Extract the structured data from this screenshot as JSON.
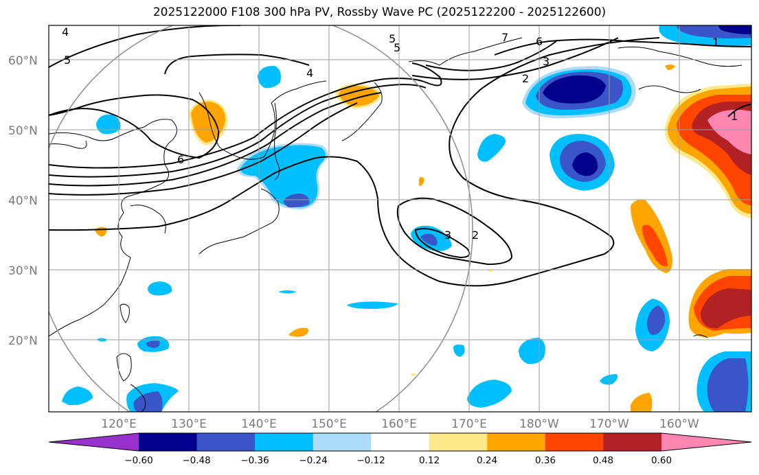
{
  "title": "2025122000 F108 300 hPa PV, Rossby Wave PC (2025122200 - 2025122600)",
  "lon_ticks": [
    "120°E",
    "130°E",
    "140°E",
    "150°E",
    "160°E",
    "170°E",
    "180°W",
    "170°W",
    "160°W"
  ],
  "lat_ticks": [
    "60°N",
    "50°N",
    "40°N",
    "30°N",
    "20°N"
  ],
  "contour_labels": [
    "4",
    "5",
    "5",
    "4",
    "6",
    "7",
    "6",
    "5",
    "3",
    "2",
    "1",
    "1",
    "3",
    "2"
  ],
  "colorbar": {
    "ticks": [
      "−0.60",
      "−0.48",
      "−0.36",
      "−0.24",
      "−0.12",
      "0.12",
      "0.24",
      "0.36",
      "0.48",
      "0.60"
    ],
    "colors": [
      "#9932cc",
      "#00008b",
      "#3a55c8",
      "#00bfff",
      "#acdcf7",
      "#ffffff",
      "#ffe98a",
      "#ffa500",
      "#ff4500",
      "#b22222",
      "#ff85b3"
    ]
  }
}
